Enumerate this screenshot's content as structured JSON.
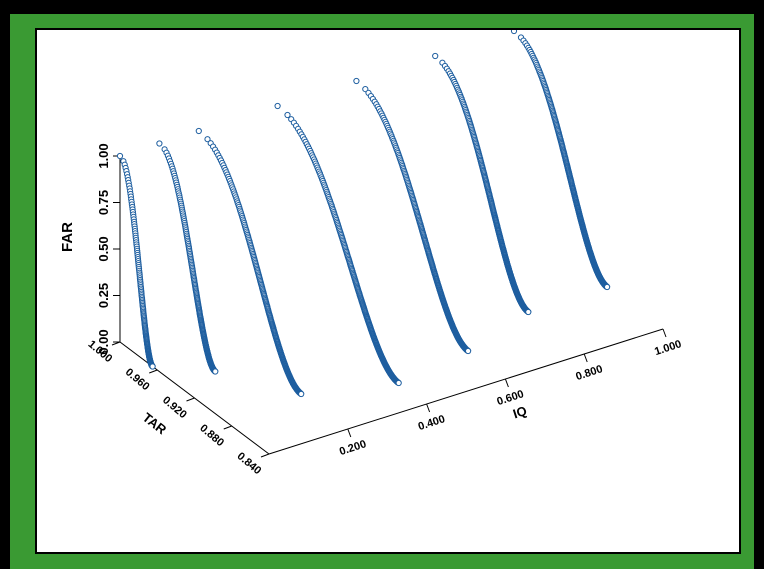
{
  "page": {
    "title": "",
    "colors": {
      "frame": "#000000",
      "border": "#3a9a33",
      "panel": "#ffffff",
      "marker": "#1f5fa0"
    }
  },
  "chart_data": {
    "type": "scatter",
    "projection": "3d",
    "title": "",
    "xlabel": "IQ",
    "ylabel": "TAR",
    "zlabel": "FAR",
    "x_ticks": [
      "0.200",
      "0.400",
      "0.600",
      "0.800",
      "1.000"
    ],
    "y_ticks": [
      "0.840",
      "0.880",
      "0.920",
      "0.960",
      "1.000"
    ],
    "z_ticks": [
      "0.00",
      "0.25",
      "0.50",
      "0.75",
      "1.00"
    ],
    "xlim": [
      0.0,
      1.0
    ],
    "ylim": [
      0.84,
      1.0
    ],
    "zlim": [
      0.0,
      1.0
    ],
    "marker": "open-circle",
    "grid": false,
    "series": [
      {
        "iq": 0.0,
        "tar_min": 0.965,
        "far_max": 1.0,
        "points": 150
      },
      {
        "iq": 0.1,
        "tar_min": 0.94,
        "far_max": 1.0,
        "points": 200
      },
      {
        "iq": 0.2,
        "tar_min": 0.89,
        "far_max": 1.0,
        "points": 240
      },
      {
        "iq": 0.4,
        "tar_min": 0.87,
        "far_max": 1.0,
        "points": 260
      },
      {
        "iq": 0.6,
        "tar_min": 0.88,
        "far_max": 1.0,
        "points": 280
      },
      {
        "iq": 0.8,
        "tar_min": 0.9,
        "far_max": 1.0,
        "points": 300
      },
      {
        "iq": 1.0,
        "tar_min": 0.9,
        "far_max": 1.0,
        "points": 320
      }
    ]
  }
}
